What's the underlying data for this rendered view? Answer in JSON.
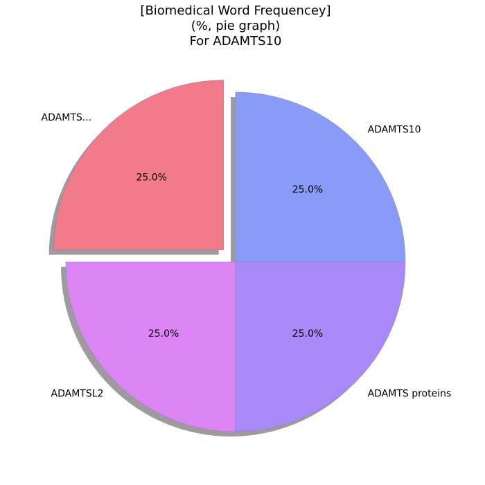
{
  "chart_data": {
    "type": "pie",
    "title": [
      "[Biomedical Word Frequencey]",
      "(%, pie graph)",
      "For ADAMTS10"
    ],
    "slices": [
      {
        "label": "ADAMTS10",
        "value": 25.0,
        "pct_label": "25.0%",
        "color": "#879bf7",
        "explode": false
      },
      {
        "label": "ADAMTS...",
        "value": 25.0,
        "pct_label": "25.0%",
        "color": "#f17b89",
        "explode": true
      },
      {
        "label": "ADAMTSL2",
        "value": 25.0,
        "pct_label": "25.0%",
        "color": "#de85f5",
        "explode": false
      },
      {
        "label": "ADAMTS proteins",
        "value": 25.0,
        "pct_label": "25.0%",
        "color": "#a988f7",
        "explode": false
      }
    ],
    "start_angle_deg": 0,
    "direction": "counterclockwise",
    "shadow": true,
    "shadow_color": "#a09aa0",
    "edge_color": "#8a8ab0"
  }
}
